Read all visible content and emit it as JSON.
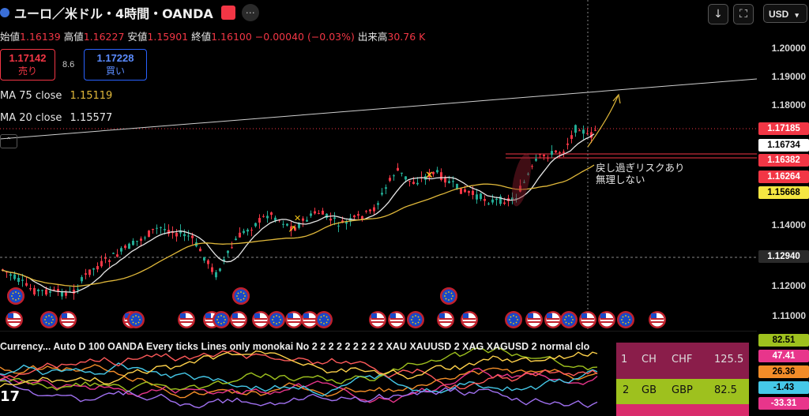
{
  "header": {
    "symbol_title": "ユーロ／米ドル・4時間・OANDA",
    "open_label": "始値",
    "open": "1.16139",
    "high_label": "高値",
    "high": "1.16227",
    "low_label": "安値",
    "low": "1.15901",
    "close_label": "終値",
    "close": "1.16100",
    "change": "−0.00040 (−0.03%)",
    "volume_label": "出来高",
    "volume": "30.76 K"
  },
  "trade": {
    "sell_price": "1.17142",
    "sell_label": "売り",
    "spread": "8.6",
    "buy_price": "1.17228",
    "buy_label": "買い"
  },
  "indicators": {
    "ma75": "MA 75 close",
    "ma75_value": "1.15119",
    "ma20": "MA 20 close",
    "ma20_value": "1.15577"
  },
  "currency_select": "USD",
  "price_axis": [
    "1.20000",
    "1.19000",
    "1.18000",
    "1.14000",
    "1.12000",
    "1.11000"
  ],
  "price_tags": {
    "last": "1.17185",
    "p2": "1.16734",
    "p3": "1.16382",
    "p4": "1.16264",
    "p5": "1.15668",
    "p6": "1.12940"
  },
  "annotation": {
    "line1": "戻し過ぎリスクあり",
    "line2": "無理しない"
  },
  "sub_indicator": {
    "title": "Currency... Auto D 100 OANDA Every ticks Lines only monokai No 2 2 2 2 2 2 2 2 2 XAU XAUUSD 2 XAG XAGUSD 2 normal clo",
    "table_row1": {
      "rank": "1",
      "a": "CH",
      "b": "CHF",
      "v": "125.5"
    },
    "table_row2": {
      "rank": "2",
      "a": "GB",
      "b": "GBP",
      "v": "82.5"
    },
    "axis": [
      "82.51",
      "47.41",
      "26.36",
      "-1.43",
      "-33.31"
    ]
  },
  "colors": {
    "up": "#22ab94",
    "down": "#f23645",
    "ma20": "#e6e6e6",
    "ma75": "#e0b83a"
  }
}
